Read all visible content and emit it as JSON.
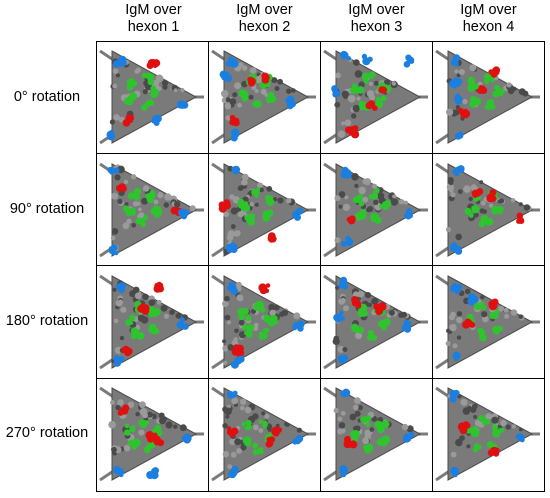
{
  "column_headers": [
    "IgM over\nhexon 1",
    "IgM over\nhexon 2",
    "IgM over\nhexon 3",
    "IgM over\nhexon 4"
  ],
  "row_labels": [
    "0° rotation",
    "90° rotation",
    "180° rotation",
    "270° rotation"
  ],
  "colors": {
    "hexon_gray": "#7a7a7a",
    "hexon_dark": "#4a4a4a",
    "igm_green": "#2ec42e",
    "red_marker": "#e01010",
    "blue_marker": "#1a7fe0"
  },
  "cells_description": "4x4 grid of molecular renderings: gray triangular capsid facet with green IgM pentamer, red and blue markers"
}
